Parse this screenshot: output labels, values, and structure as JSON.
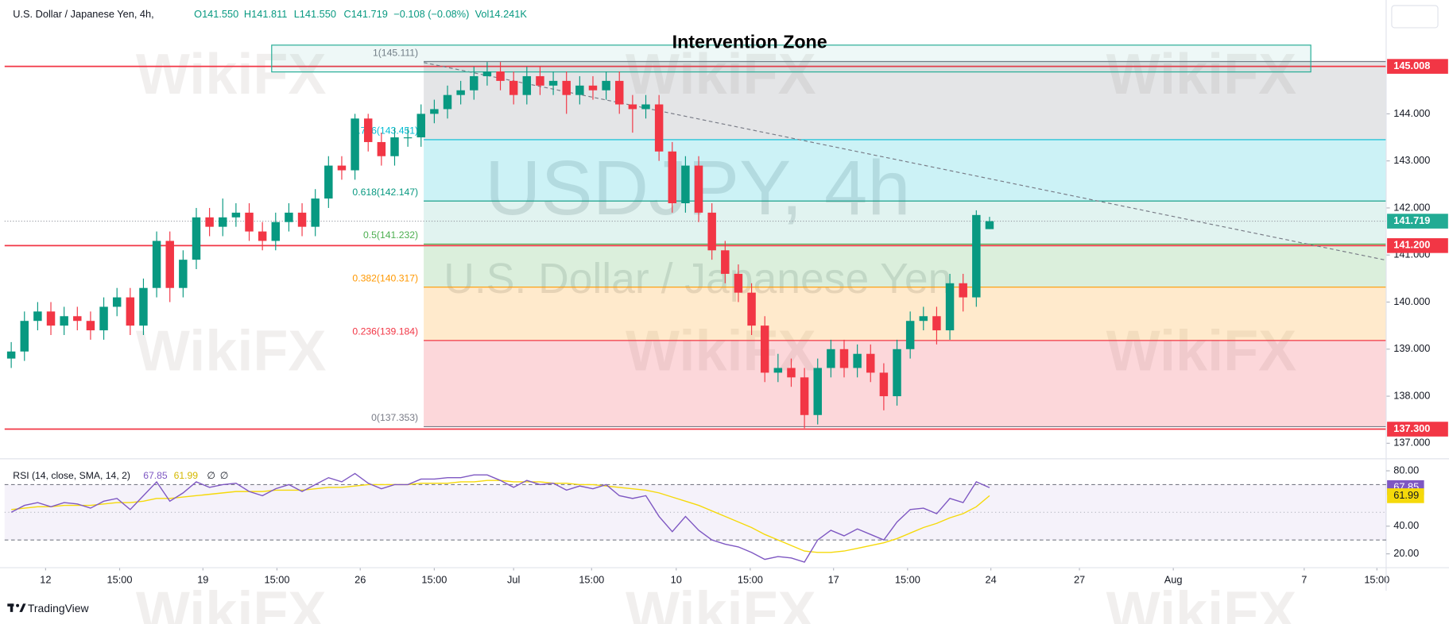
{
  "chart_data": {
    "type": "candlestick",
    "header": [
      "U.S. Dollar / Japanese Yen, 4h,",
      "O141.550",
      "H141.811",
      "L141.550",
      "C141.719",
      "−0.108 (−0.08%)",
      "Vol14.241K"
    ],
    "watermark": {
      "symbol": "USDJPY, 4h",
      "description": "U.S. Dollar / Japanese Yen"
    },
    "brand_watermark": "WikiFX",
    "footer": "TradingView",
    "open": [
      138.8,
      138.95,
      139.6,
      139.8,
      139.5,
      139.7,
      139.6,
      139.4,
      139.9,
      140.1,
      139.5,
      140.3,
      141.3,
      140.3,
      140.9,
      141.8,
      141.6,
      141.8,
      141.9,
      141.5,
      141.3,
      141.7,
      141.9,
      141.6,
      142.2,
      142.9,
      142.8,
      143.9,
      143.4,
      143.1,
      143.5,
      143.5,
      144.0,
      144.1,
      144.4,
      144.5,
      144.8,
      144.9,
      144.7,
      144.4,
      144.8,
      144.6,
      144.7,
      144.4,
      144.6,
      144.5,
      144.7,
      144.2,
      144.1,
      144.2,
      143.2,
      142.1,
      142.9,
      141.9,
      141.1,
      140.6,
      140.2,
      139.5,
      138.5,
      138.6,
      138.4,
      137.6,
      138.6,
      139.0,
      138.6,
      138.9,
      138.5,
      138.0,
      139.0,
      139.6,
      139.7,
      139.4,
      140.4,
      140.1,
      141.55
    ],
    "high": [
      139.15,
      139.8,
      140.0,
      140.0,
      139.9,
      139.9,
      139.8,
      140.1,
      140.3,
      140.3,
      140.5,
      141.5,
      141.5,
      141.1,
      142.0,
      142.0,
      142.2,
      142.1,
      142.1,
      141.7,
      141.9,
      142.1,
      142.1,
      142.4,
      143.1,
      143.1,
      144.0,
      144.0,
      143.6,
      143.7,
      143.7,
      144.2,
      144.3,
      144.6,
      144.7,
      145.0,
      145.1,
      145.1,
      144.9,
      145.0,
      145.0,
      144.9,
      144.9,
      144.8,
      144.8,
      144.9,
      144.9,
      144.4,
      144.4,
      144.4,
      143.4,
      143.1,
      143.1,
      142.1,
      141.3,
      140.8,
      140.4,
      139.7,
      138.9,
      138.8,
      138.6,
      138.8,
      139.2,
      139.2,
      139.1,
      139.1,
      138.7,
      139.2,
      139.8,
      139.9,
      139.9,
      140.6,
      140.6,
      141.95,
      141.811
    ],
    "low": [
      138.6,
      138.75,
      139.4,
      139.3,
      139.3,
      139.4,
      139.2,
      139.2,
      139.7,
      139.3,
      139.3,
      140.1,
      140.0,
      140.1,
      140.7,
      141.4,
      141.4,
      141.6,
      141.3,
      141.1,
      141.1,
      141.5,
      141.4,
      141.4,
      142.0,
      142.6,
      142.6,
      143.2,
      142.9,
      142.9,
      143.3,
      143.3,
      143.8,
      143.9,
      144.2,
      144.3,
      144.6,
      144.5,
      144.2,
      144.2,
      144.4,
      144.4,
      144.0,
      144.2,
      144.3,
      144.3,
      144.0,
      143.6,
      143.9,
      143.0,
      141.9,
      141.9,
      141.7,
      140.9,
      140.4,
      140.0,
      139.3,
      138.3,
      138.3,
      138.2,
      137.32,
      137.4,
      138.4,
      138.4,
      138.4,
      138.3,
      137.7,
      137.8,
      138.8,
      139.4,
      139.1,
      139.2,
      139.8,
      139.9,
      141.55
    ],
    "close": [
      138.95,
      139.6,
      139.8,
      139.5,
      139.7,
      139.6,
      139.4,
      139.9,
      140.1,
      139.5,
      140.3,
      141.3,
      140.3,
      140.9,
      141.8,
      141.6,
      141.8,
      141.9,
      141.5,
      141.3,
      141.7,
      141.9,
      141.6,
      142.2,
      142.9,
      142.8,
      143.9,
      143.4,
      143.1,
      143.5,
      143.5,
      144.0,
      144.1,
      144.4,
      144.5,
      144.8,
      144.9,
      144.7,
      144.4,
      144.8,
      144.6,
      144.7,
      144.4,
      144.6,
      144.5,
      144.7,
      144.2,
      144.1,
      144.2,
      143.2,
      142.1,
      142.9,
      141.9,
      141.1,
      140.6,
      140.2,
      139.5,
      138.5,
      138.6,
      138.4,
      137.6,
      138.6,
      139.0,
      138.6,
      138.9,
      138.5,
      138.0,
      139.0,
      139.6,
      139.7,
      139.4,
      140.4,
      140.1,
      141.85,
      141.719
    ],
    "up_color": "#089981",
    "down_color": "#f23645",
    "xlim": [
      -0.5,
      104
    ],
    "xticks": [
      {
        "value": 2.6,
        "label": "12"
      },
      {
        "value": 8.2,
        "label": "15:00"
      },
      {
        "value": 14.5,
        "label": "19"
      },
      {
        "value": 20.1,
        "label": "15:00"
      },
      {
        "value": 26.4,
        "label": "26"
      },
      {
        "value": 32.0,
        "label": "15:00"
      },
      {
        "value": 38.0,
        "label": "Jul"
      },
      {
        "value": 43.9,
        "label": "15:00"
      },
      {
        "value": 50.3,
        "label": "10"
      },
      {
        "value": 55.9,
        "label": "15:00"
      },
      {
        "value": 62.2,
        "label": "17"
      },
      {
        "value": 67.8,
        "label": "15:00"
      },
      {
        "value": 74.1,
        "label": "24"
      },
      {
        "value": 80.8,
        "label": "27"
      },
      {
        "value": 87.9,
        "label": "Aug"
      },
      {
        "value": 97.8,
        "label": "7"
      },
      {
        "value": 103.3,
        "label": "15:00"
      }
    ],
    "ylim": [
      136.71,
      146.32
    ],
    "yticks": [
      {
        "value": 137,
        "label": "137.000"
      },
      {
        "value": 138,
        "label": "138.000"
      },
      {
        "value": 139,
        "label": "139.000"
      },
      {
        "value": 140,
        "label": "140.000"
      },
      {
        "value": 141,
        "label": "141.000"
      },
      {
        "value": 142,
        "label": "142.000"
      },
      {
        "value": 143,
        "label": "143.000"
      },
      {
        "value": 144,
        "label": "144.000"
      }
    ],
    "price_lines": [
      {
        "value": 145.008,
        "label": "145.008"
      },
      {
        "value": 141.2,
        "label": "141.200"
      },
      {
        "value": 137.3,
        "label": "137.300"
      }
    ],
    "price_line_color": "#f23645",
    "last_price_color": "#22ab94",
    "fib": {
      "start": 31.2,
      "levels": [
        {
          "value": 145.111,
          "label": "1(145.111)",
          "color": "#787b86",
          "fill": "rgba(120,123,134,0.20)"
        },
        {
          "value": 143.451,
          "label": "0.786(143.451)",
          "color": "#00bcd4",
          "fill": "rgba(0,188,212,0.20)"
        },
        {
          "value": 142.147,
          "label": "0.618(142.147)",
          "color": "#089981",
          "fill": "rgba(8,153,129,0.12)"
        },
        {
          "value": 141.232,
          "label": "0.5(141.232)",
          "color": "#4caf50",
          "fill": "rgba(76,175,80,0.20)"
        },
        {
          "value": 140.317,
          "label": "0.382(140.317)",
          "color": "#ff9800",
          "fill": "rgba(255,152,0,0.20)"
        },
        {
          "value": 139.184,
          "label": "0.236(139.184)",
          "color": "#f23645",
          "fill": "rgba(242,54,69,0.20)"
        },
        {
          "value": 137.353,
          "label": "0(137.353)",
          "color": "#787b86",
          "fill": "none"
        }
      ]
    },
    "trendline": {
      "x": [
        31.2,
        104
      ],
      "y": [
        145.09,
        140.89
      ],
      "color": "#787b86"
    },
    "zone": {
      "label": "Intervention Zone",
      "x": [
        19.7,
        98.3
      ],
      "y": [
        144.89,
        145.46
      ],
      "color": "#22ab94"
    },
    "rsi": {
      "legend": [
        "RSI (14, close, SMA, 14, 2)",
        "∅",
        "∅"
      ],
      "values": [
        50,
        55,
        57,
        54,
        57,
        56,
        53,
        58,
        60,
        52,
        62,
        72,
        58,
        64,
        72,
        68,
        70,
        71,
        65,
        62,
        67,
        70,
        65,
        70,
        75,
        72,
        78,
        71,
        67,
        70,
        70,
        74,
        74,
        75,
        75,
        77,
        77,
        73,
        68,
        73,
        70,
        71,
        66,
        69,
        67,
        70,
        62,
        60,
        62,
        47,
        36,
        47,
        37,
        30,
        27,
        25,
        21,
        16,
        18,
        17,
        14,
        30,
        37,
        33,
        38,
        34,
        30,
        43,
        52,
        53,
        49,
        60,
        57,
        72,
        67.85
      ],
      "sma": [
        52,
        53,
        54,
        54,
        55,
        55,
        55,
        56,
        57,
        57,
        58,
        60,
        60,
        61,
        62,
        63,
        64,
        65,
        65,
        65,
        66,
        66,
        66,
        67,
        68,
        68,
        69,
        70,
        70,
        70,
        70,
        71,
        71,
        71,
        72,
        72,
        73,
        73,
        72,
        72,
        72,
        71,
        71,
        70,
        70,
        69,
        68,
        67,
        66,
        64,
        61,
        58,
        55,
        51,
        47,
        43,
        39,
        34,
        30,
        26,
        22,
        21,
        21,
        22,
        24,
        26,
        28,
        31,
        35,
        39,
        42,
        46,
        49,
        54,
        61.99
      ],
      "color": "#7e57c2",
      "sma_color": "#f5d90a",
      "ylim": [
        10,
        84.7
      ],
      "yticks": [
        {
          "value": 20,
          "label": "20.00"
        },
        {
          "value": 40,
          "label": "40.00"
        },
        {
          "value": 80,
          "label": "80.00"
        }
      ],
      "bands": [
        30,
        70
      ],
      "mid": 50
    }
  }
}
